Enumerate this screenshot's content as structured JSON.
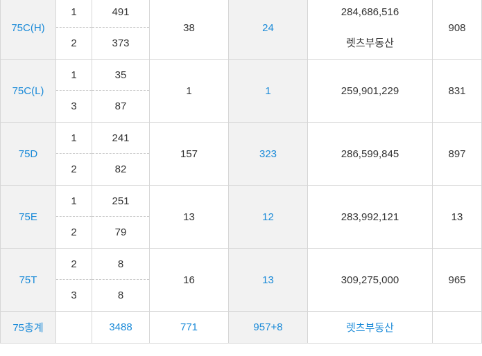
{
  "groups": [
    {
      "type": "75C(H)",
      "subs": [
        {
          "n": "1",
          "v": "491"
        },
        {
          "n": "2",
          "v": "373"
        }
      ],
      "c1": "38",
      "c2": "24",
      "price": "284,686,516",
      "agent": "렛츠부동산",
      "last": "908"
    },
    {
      "type": "75C(L)",
      "subs": [
        {
          "n": "1",
          "v": "35"
        },
        {
          "n": "3",
          "v": "87"
        }
      ],
      "c1": "1",
      "c2": "1",
      "price": "259,901,229",
      "last": "831"
    },
    {
      "type": "75D",
      "subs": [
        {
          "n": "1",
          "v": "241"
        },
        {
          "n": "2",
          "v": "82"
        }
      ],
      "c1": "157",
      "c2": "323",
      "price": "286,599,845",
      "last": "897"
    },
    {
      "type": "75E",
      "subs": [
        {
          "n": "1",
          "v": "251"
        },
        {
          "n": "2",
          "v": "79"
        }
      ],
      "c1": "13",
      "c2": "12",
      "price": "283,992,121",
      "last": "13"
    },
    {
      "type": "75T",
      "subs": [
        {
          "n": "2",
          "v": "8"
        },
        {
          "n": "3",
          "v": "8"
        }
      ],
      "c1": "16",
      "c2": "13",
      "price": "309,275,000",
      "last": "965"
    }
  ],
  "total": {
    "type": "75총계",
    "v": "3488",
    "c1": "771",
    "c2": "957+8",
    "agent": "렛츠부동산"
  }
}
